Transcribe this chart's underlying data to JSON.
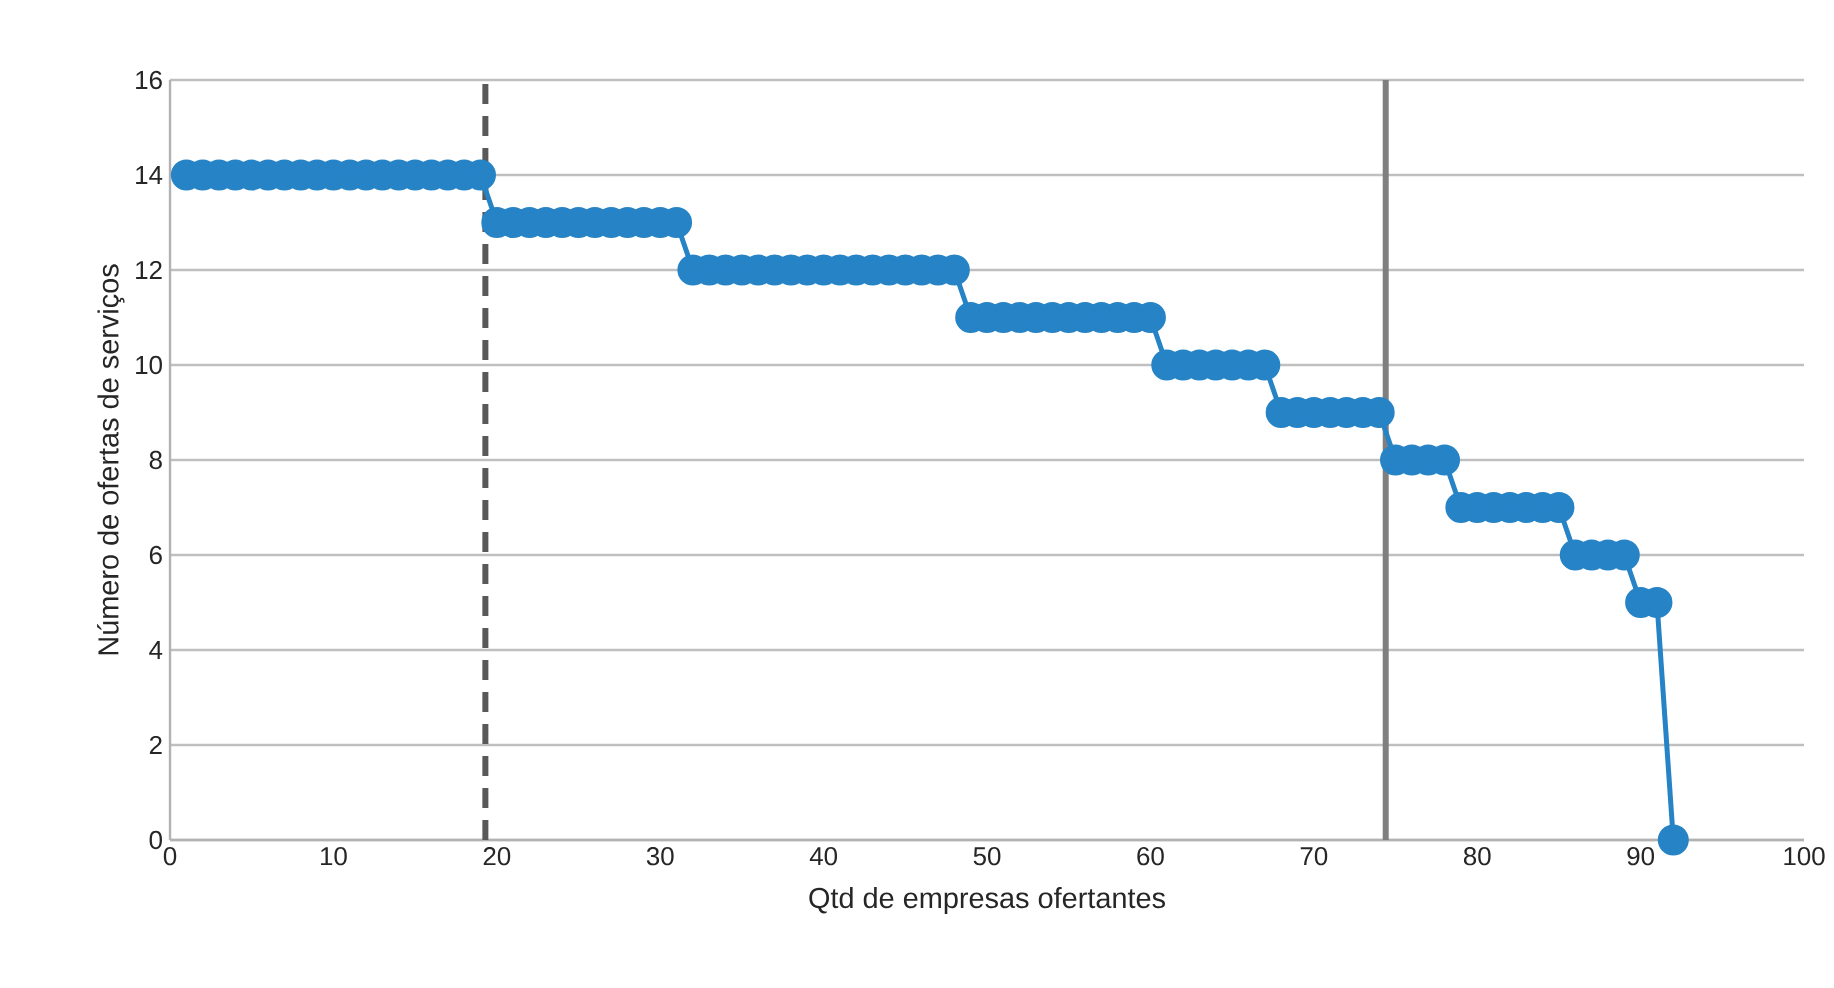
{
  "chart_data": {
    "type": "line",
    "xlabel": "Qtd de empresas ofertantes",
    "ylabel": "Número de ofertas de serviços",
    "x": [
      1,
      2,
      3,
      4,
      5,
      6,
      7,
      8,
      9,
      10,
      11,
      12,
      13,
      14,
      15,
      16,
      17,
      18,
      19,
      20,
      21,
      22,
      23,
      24,
      25,
      26,
      27,
      28,
      29,
      30,
      31,
      32,
      33,
      34,
      35,
      36,
      37,
      38,
      39,
      40,
      41,
      42,
      43,
      44,
      45,
      46,
      47,
      48,
      49,
      50,
      51,
      52,
      53,
      54,
      55,
      56,
      57,
      58,
      59,
      60,
      61,
      62,
      63,
      64,
      65,
      66,
      67,
      68,
      69,
      70,
      71,
      72,
      73,
      74,
      75,
      76,
      77,
      78,
      79,
      80,
      81,
      82,
      83,
      84,
      85,
      86,
      87,
      88,
      89,
      90,
      91,
      92
    ],
    "series": [
      {
        "color": "#2683c6",
        "values": [
          14,
          14,
          14,
          14,
          14,
          14,
          14,
          14,
          14,
          14,
          14,
          14,
          14,
          14,
          14,
          14,
          14,
          14,
          14,
          13,
          13,
          13,
          13,
          13,
          13,
          13,
          13,
          13,
          13,
          13,
          13,
          12,
          12,
          12,
          12,
          12,
          12,
          12,
          12,
          12,
          12,
          12,
          12,
          12,
          12,
          12,
          12,
          12,
          11,
          11,
          11,
          11,
          11,
          11,
          11,
          11,
          11,
          11,
          11,
          11,
          10,
          10,
          10,
          10,
          10,
          10,
          10,
          9,
          9,
          9,
          9,
          9,
          9,
          9,
          8,
          8,
          8,
          8,
          7,
          7,
          7,
          7,
          7,
          7,
          7,
          6,
          6,
          6,
          6,
          5,
          5,
          0
        ]
      }
    ],
    "xlim": [
      0,
      100
    ],
    "ylim": [
      0,
      16
    ],
    "xticks": [
      0,
      10,
      20,
      30,
      40,
      50,
      60,
      70,
      80,
      90,
      100
    ],
    "yticks": [
      0,
      2,
      4,
      6,
      8,
      10,
      12,
      14,
      16
    ],
    "grid": "y",
    "marker": "circle",
    "line_style": "solid",
    "ref_lines": [
      {
        "axis": "x",
        "value": 19.3,
        "color": "#595959",
        "line_style": "dashed"
      },
      {
        "axis": "x",
        "value": 74.4,
        "color": "#7f7f7f",
        "line_style": "solid"
      }
    ]
  }
}
